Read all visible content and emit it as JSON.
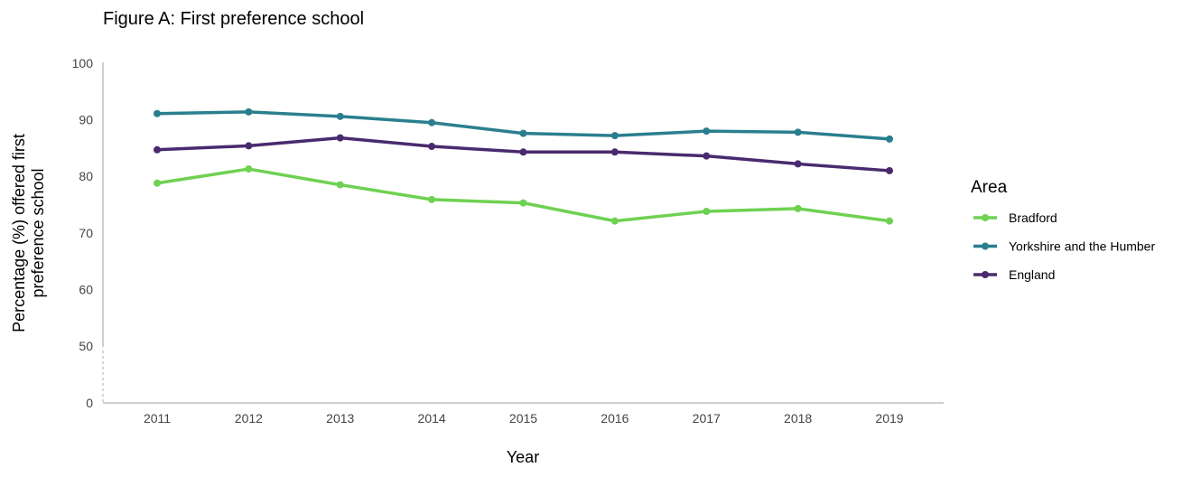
{
  "chart_data": {
    "type": "line",
    "title": "Figure A: First preference school",
    "xlabel": "Year",
    "ylabel_lines": [
      "Percentage (%) offered first",
      "preference school"
    ],
    "x": [
      "2011",
      "2012",
      "2013",
      "2014",
      "2015",
      "2016",
      "2017",
      "2018",
      "2019"
    ],
    "y_ticks": [
      "100",
      "90",
      "80",
      "70",
      "60",
      "50",
      "0"
    ],
    "y_axis_break": "between 0 and 50",
    "ylim": [
      40,
      100
    ],
    "legend": {
      "title": "Area",
      "position": "right"
    },
    "grid": false,
    "series": [
      {
        "name": "Bradford",
        "color": "#6fd152",
        "values": [
          78.8,
          81.3,
          78.5,
          75.9,
          75.3,
          72.1,
          73.8,
          74.3,
          72.1
        ]
      },
      {
        "name": "Yorkshire and the Humber",
        "color": "#2a7f8e",
        "values": [
          91.1,
          91.4,
          90.6,
          89.5,
          87.6,
          87.2,
          88.0,
          87.8,
          86.6
        ]
      },
      {
        "name": "England",
        "color": "#4a2a6e",
        "values": [
          84.7,
          85.4,
          86.8,
          85.3,
          84.3,
          84.3,
          83.6,
          82.2,
          81.0
        ]
      }
    ]
  }
}
